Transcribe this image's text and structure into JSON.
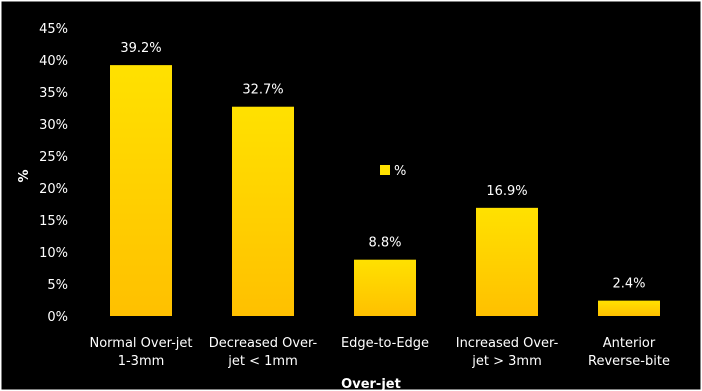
{
  "chart_data": {
    "type": "bar",
    "categories": [
      [
        "Normal Over-jet",
        "1-3mm"
      ],
      [
        "Decreased Over-",
        "jet < 1mm"
      ],
      [
        "Edge-to-Edge"
      ],
      [
        "Increased Over-",
        "jet > 3mm"
      ],
      [
        "Anterior",
        "Reverse-bite"
      ]
    ],
    "series": [
      {
        "name": "%",
        "values": [
          39.2,
          32.7,
          8.8,
          16.9,
          2.4
        ],
        "data_labels": [
          "39.2%",
          "32.7%",
          "8.8%",
          "16.9%",
          "2.4%"
        ]
      }
    ],
    "xlabel": "Over-jet",
    "ylabel": "%",
    "ylim": [
      0,
      45
    ],
    "y_ticks": [
      0,
      5,
      10,
      15,
      20,
      25,
      30,
      35,
      40,
      45
    ],
    "y_tick_labels": [
      "0%",
      "5%",
      "10%",
      "15%",
      "20%",
      "25%",
      "30%",
      "35%",
      "40%",
      "45%"
    ],
    "grid": false,
    "legend": {
      "placement": "center",
      "entries": [
        "%"
      ]
    },
    "colors": {
      "background": "#000000",
      "bar_top": "#ffe100",
      "bar_bottom": "#ffc000",
      "text": "#ffffff",
      "frame": "#ffffff"
    }
  }
}
